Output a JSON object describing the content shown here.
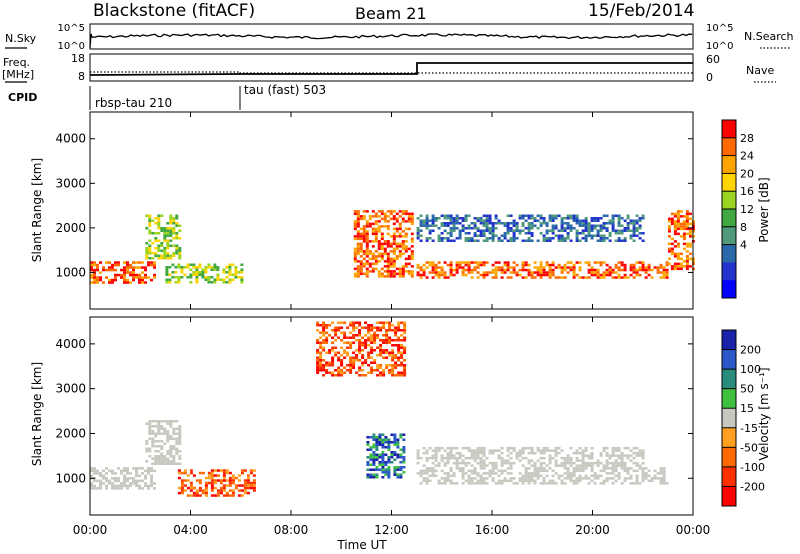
{
  "header": {
    "station": "Blackstone (fitACF)",
    "beam": "Beam 21",
    "date": "15/Feb/2014"
  },
  "panel_labels": {
    "nsky": "N.Sky",
    "nsearch": "N.Search",
    "freq": "Freq.",
    "freq_unit": "[MHz]",
    "nave": "Nave",
    "cpid": "CPID"
  },
  "noise_axis": {
    "left_top": "10^5",
    "left_bottom": "10^0",
    "right_top": "10^5",
    "right_bottom": "10^0"
  },
  "freq_axis": {
    "left_ticks": [
      "18",
      "8"
    ],
    "right_ticks": [
      "60",
      "0"
    ]
  },
  "cpid_blocks": [
    {
      "label": "rbsp-tau 210",
      "start_hour": 0,
      "end_hour": 6
    },
    {
      "label": "tau (fast) 503",
      "start_hour": 6,
      "end_hour": 24
    }
  ],
  "x_axis": {
    "label": "Time UT",
    "ticks": [
      "00:00",
      "04:00",
      "08:00",
      "12:00",
      "16:00",
      "20:00",
      "00:00"
    ]
  },
  "chart_data": [
    {
      "type": "heatmap",
      "panel": "power",
      "ylabel": "Slant Range [km]",
      "yticks": [
        "4000",
        "3000",
        "2000",
        "1000"
      ],
      "ylim": [
        180,
        4600
      ],
      "xlim_hours": [
        0,
        24
      ],
      "colorbar_label": "Power [dB]",
      "colorbar_ticks": [
        "28",
        "24",
        "20",
        "16",
        "12",
        "8",
        "4"
      ],
      "colorbar_colors": [
        "#ff0000",
        "#ff6a00",
        "#ffa500",
        "#ffd400",
        "#9ad420",
        "#40a840",
        "#4f9a7a",
        "#2a6aaa",
        "#2233cc",
        "#0000ff"
      ],
      "echo_regions": [
        {
          "x": [
            0,
            2.6
          ],
          "y": [
            800,
            1250
          ],
          "value": "high"
        },
        {
          "x": [
            2.2,
            3.6
          ],
          "y": [
            1300,
            2300
          ],
          "value": "mid"
        },
        {
          "x": [
            3,
            6
          ],
          "y": [
            780,
            1200
          ],
          "value": "mid"
        },
        {
          "x": [
            10.5,
            12.8
          ],
          "y": [
            900,
            2400
          ],
          "value": "high"
        },
        {
          "x": [
            13,
            23
          ],
          "y": [
            860,
            1250
          ],
          "value": "high"
        },
        {
          "x": [
            23,
            24
          ],
          "y": [
            1100,
            2400
          ],
          "value": "high"
        },
        {
          "x": [
            13,
            22
          ],
          "y": [
            1700,
            2300
          ],
          "value": "low"
        }
      ]
    },
    {
      "type": "heatmap",
      "panel": "velocity",
      "ylabel": "Slant Range [km]",
      "yticks": [
        "4000",
        "3000",
        "2000",
        "1000"
      ],
      "ylim": [
        180,
        4600
      ],
      "xlim_hours": [
        0,
        24
      ],
      "colorbar_label": "Velocity [m s⁻¹]",
      "colorbar_ticks": [
        "200",
        "100",
        "50",
        "15",
        "-15",
        "-50",
        "-100",
        "-200"
      ],
      "colorbar_colors": [
        "#1a22aa",
        "#2a58c8",
        "#2a8c7a",
        "#40c040",
        "#c8c8c0",
        "#ffa020",
        "#ff6a00",
        "#ff3000",
        "#ff0000"
      ],
      "echo_regions": [
        {
          "x": [
            0,
            2.6
          ],
          "y": [
            800,
            1250
          ],
          "value": "ground"
        },
        {
          "x": [
            2.2,
            3.6
          ],
          "y": [
            1300,
            2300
          ],
          "value": "ground"
        },
        {
          "x": [
            13,
            23
          ],
          "y": [
            860,
            1250
          ],
          "value": "ground"
        },
        {
          "x": [
            13,
            22
          ],
          "y": [
            1300,
            1700
          ],
          "value": "ground"
        },
        {
          "x": [
            3.5,
            6.5
          ],
          "y": [
            600,
            1200
          ],
          "value": "neg"
        },
        {
          "x": [
            9,
            12.5
          ],
          "y": [
            3300,
            4500
          ],
          "value": "neg"
        },
        {
          "x": [
            11,
            12.5
          ],
          "y": [
            1000,
            2000
          ],
          "value": "pos"
        }
      ]
    }
  ]
}
